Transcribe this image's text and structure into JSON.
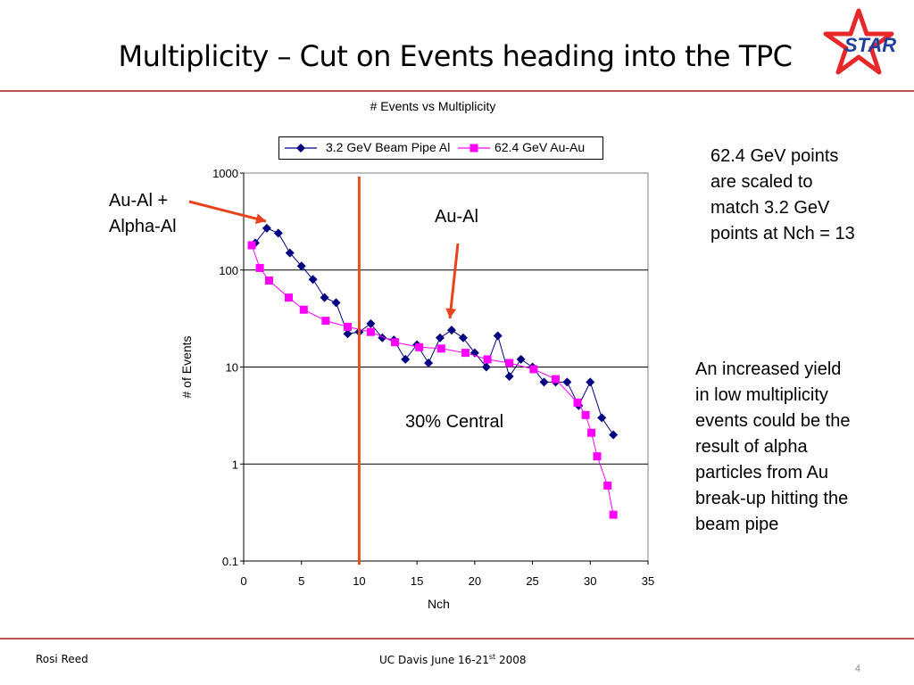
{
  "slide": {
    "title": "Multiplicity – Cut on Events heading into the TPC",
    "logo_text": "STAR",
    "annotations": {
      "au_al_alpha_1": "Au-Al +",
      "au_al_alpha_2": "Alpha-Al",
      "au_al": "Au-Al",
      "central": "30% Central",
      "scaled_note": [
        "62.4 GeV points",
        "are scaled to",
        "match 3.2 GeV",
        "points at Nch = 13"
      ],
      "yield_note": [
        "An increased yield",
        "in low multiplicity",
        "events could be the",
        "result of alpha",
        "particles from Au",
        "break-up hitting the",
        "beam pipe"
      ]
    },
    "footer": {
      "author": "Rosi Reed",
      "event_main": "UC Davis June 16-21",
      "event_sup": "st",
      "event_year": " 2008",
      "page": "4"
    },
    "colors": {
      "accent_rule": "#c0504d",
      "arrow": "#e8431c",
      "cut_line": "#e0521f",
      "logo_star": "#e8272a",
      "logo_text": "#1f3f9e"
    }
  },
  "chart_data": {
    "type": "line",
    "title": "# Events vs Multiplicity",
    "xlabel": "Nch",
    "ylabel": "# of Events",
    "xlim": [
      0,
      35
    ],
    "ylim": [
      0.1,
      1000
    ],
    "y_scale": "log",
    "x_ticks": [
      0,
      5,
      10,
      15,
      20,
      25,
      30,
      35
    ],
    "y_ticks": [
      0.1,
      1,
      10,
      100,
      1000
    ],
    "y_tick_labels": [
      "0.1",
      "1",
      "10",
      "100",
      "1000"
    ],
    "grid": "horizontal major",
    "legend_position": "top",
    "cut_line_x": 10,
    "series": [
      {
        "name": "3.2 GeV Beam Pipe Al",
        "color": "#000080",
        "marker": "diamond",
        "x": [
          1,
          2,
          3,
          4,
          5,
          6,
          7,
          8,
          9,
          10,
          11,
          12,
          13,
          14,
          15,
          16,
          17,
          18,
          19,
          20,
          21,
          22,
          23,
          24,
          25,
          26,
          27,
          28,
          29,
          30,
          31,
          32
        ],
        "y": [
          190,
          270,
          240,
          150,
          110,
          80,
          52,
          46,
          22,
          23,
          28,
          20,
          19,
          12,
          17,
          11,
          20,
          24,
          20,
          14,
          10,
          21,
          8,
          12,
          10,
          7,
          7,
          7,
          4,
          7,
          3,
          2
        ]
      },
      {
        "name": "62.4 GeV Au-Au",
        "color": "#ff00ff",
        "marker": "square",
        "x": [
          0.7,
          1.4,
          2.2,
          3.9,
          5.2,
          7.1,
          9.0,
          11.0,
          13.1,
          15.2,
          17.1,
          19.2,
          21.1,
          23.0,
          25.1,
          27.0,
          28.9,
          29.6,
          30.1,
          30.6,
          31.5,
          32.0
        ],
        "y": [
          180,
          105,
          78,
          52,
          39,
          30,
          26,
          23,
          18,
          16,
          15.5,
          14,
          12,
          11,
          9.5,
          7.5,
          4.3,
          3.2,
          2.1,
          1.2,
          0.6,
          0.3
        ]
      }
    ]
  }
}
